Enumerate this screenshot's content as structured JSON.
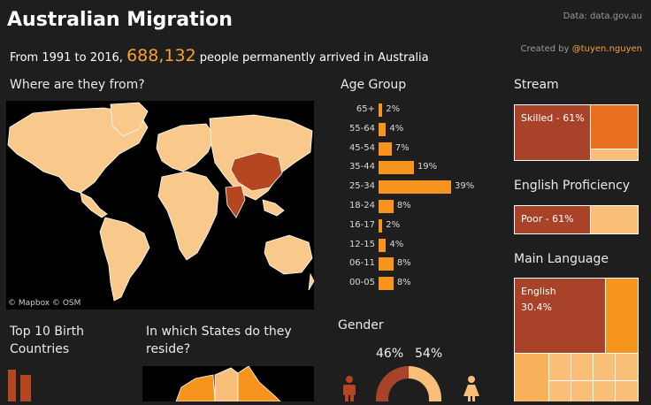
{
  "header": {
    "title": "Australian Migration",
    "source": "Data: data.gov.au",
    "created_prefix": "Created by ",
    "created_handle": "@tuyen.nguyen",
    "subtitle_pre": "From 1991 to  2016, ",
    "subtitle_number": "688,132",
    "subtitle_post": " people permanently arrived in Australia"
  },
  "map": {
    "title": "Where are they from?",
    "credit": "© Mapbox  © OSM"
  },
  "age": {
    "title": "Age Group",
    "rows": [
      {
        "label": "65+",
        "pct": 2,
        "text": "2%"
      },
      {
        "label": "55-64",
        "pct": 4,
        "text": "4%"
      },
      {
        "label": "45-54",
        "pct": 7,
        "text": "7%"
      },
      {
        "label": "35-44",
        "pct": 19,
        "text": "19%"
      },
      {
        "label": "25-34",
        "pct": 39,
        "text": "39%"
      },
      {
        "label": "18-24",
        "pct": 8,
        "text": "8%"
      },
      {
        "label": "16-17",
        "pct": 2,
        "text": "2%"
      },
      {
        "label": "12-15",
        "pct": 4,
        "text": "4%"
      },
      {
        "label": "06-11",
        "pct": 8,
        "text": "8%"
      },
      {
        "label": "00-05",
        "pct": 8,
        "text": "8%"
      }
    ]
  },
  "stream": {
    "title": "Stream",
    "main_label": "Skilled - 61%"
  },
  "english": {
    "title": "English Proficiency",
    "main_label": "Poor - 61%"
  },
  "language": {
    "title": "Main Language",
    "main_label_1": "English",
    "main_label_2": "30.4%"
  },
  "birth": {
    "title_1": "Top 10 Birth",
    "title_2": "Countries"
  },
  "states": {
    "title_1": "In which States do they",
    "title_2": "reside?"
  },
  "gender": {
    "title": "Gender",
    "male_pct": "46%",
    "female_pct": "54%",
    "male_value": 46,
    "female_value": 54
  },
  "colors": {
    "accent": "#f7941d",
    "dark": "#a8432a",
    "light": "#f9bf78",
    "map_land": "#f9c98c",
    "map_highlight": "#b5461f"
  },
  "icons": {
    "male": "male-person-icon",
    "female": "female-person-icon"
  }
}
